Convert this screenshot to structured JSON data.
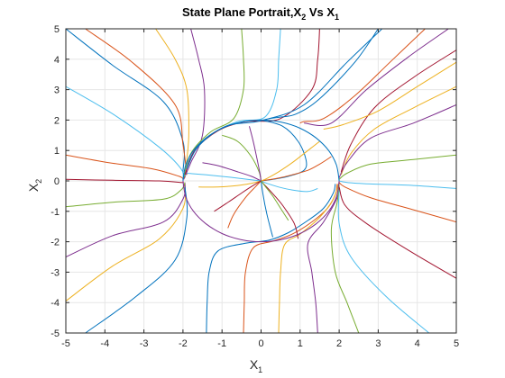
{
  "chart_data": {
    "type": "line",
    "title": {
      "part1": "State Plane Portrait,X",
      "sub1": "2",
      "part2": " Vs X",
      "sub2": "1"
    },
    "xlabel": {
      "main": "X",
      "sub": "1"
    },
    "ylabel": {
      "main": "X",
      "sub": "2"
    },
    "xlim": [
      -5,
      5
    ],
    "ylim": [
      -5,
      5
    ],
    "xticks": [
      -5,
      -4,
      -3,
      -2,
      -1,
      0,
      1,
      2,
      3,
      4,
      5
    ],
    "yticks": [
      -5,
      -4,
      -3,
      -2,
      -1,
      0,
      1,
      2,
      3,
      4,
      5
    ],
    "grid": true,
    "colors": [
      "#0072BD",
      "#D95319",
      "#EDB120",
      "#7E2F8E",
      "#77AC30",
      "#4DBEEE",
      "#A2142F"
    ],
    "series": [
      {
        "color_index": 0,
        "x": [
          -1.4,
          -1.38,
          -1.33,
          -1.1,
          -0.4,
          0.2,
          0.7,
          1.2,
          1.6,
          1.85,
          1.9
        ],
        "y": [
          -5,
          -4,
          -3,
          -2.3,
          -2.05,
          -1.95,
          -1.7,
          -1.3,
          -0.9,
          -0.4,
          -0.1
        ]
      },
      {
        "color_index": 1,
        "x": [
          -0.45,
          -0.43,
          -0.4,
          -0.2,
          0.3,
          0.8,
          1.3,
          1.7,
          1.9,
          1.95
        ],
        "y": [
          -5,
          -4,
          -3,
          -2.2,
          -1.98,
          -1.75,
          -1.35,
          -0.9,
          -0.45,
          -0.1
        ]
      },
      {
        "color_index": 2,
        "x": [
          0.45,
          0.47,
          0.5,
          0.6,
          1.0,
          1.5,
          1.85,
          1.98
        ],
        "y": [
          -5,
          -4,
          -3,
          -2.1,
          -1.75,
          -1.2,
          -0.6,
          -0.1
        ]
      },
      {
        "color_index": 3,
        "x": [
          1.45,
          1.4,
          1.3,
          1.2,
          1.6,
          1.95,
          2.0
        ],
        "y": [
          -5,
          -4,
          -3,
          -2.05,
          -1.35,
          -0.55,
          -0.05
        ]
      },
      {
        "color_index": 4,
        "x": [
          2.5,
          2.2,
          1.9,
          1.8,
          1.95,
          2.0
        ],
        "y": [
          -5,
          -4,
          -3,
          -1.6,
          -0.7,
          -0.1
        ]
      },
      {
        "color_index": 5,
        "x": [
          4.3,
          3.2,
          2.3,
          2.0,
          2.0
        ],
        "y": [
          -5,
          -3.8,
          -2.5,
          -1.4,
          -0.3
        ]
      },
      {
        "color_index": 6,
        "x": [
          5,
          3.8,
          2.7,
          2.15,
          2.0
        ],
        "y": [
          -3.2,
          -2.3,
          -1.4,
          -0.8,
          -0.2
        ]
      },
      {
        "color_index": 0,
        "x": [
          -5,
          -3.8,
          -2.5,
          -2.0,
          -2.0
        ],
        "y": [
          5,
          3.8,
          2.6,
          1.3,
          0.3
        ]
      },
      {
        "color_index": 1,
        "x": [
          -4.5,
          -3.3,
          -2.2,
          -2.0,
          -1.9
        ],
        "y": [
          5,
          3.9,
          2.5,
          1.2,
          0.2
        ]
      },
      {
        "color_index": 2,
        "x": [
          -2.7,
          -2.2,
          -1.9,
          -1.85,
          -1.9,
          -1.95
        ],
        "y": [
          5,
          4,
          3,
          1.6,
          0.7,
          0.1
        ]
      },
      {
        "color_index": 3,
        "x": [
          -1.8,
          -1.6,
          -1.45,
          -1.5,
          -1.8,
          -1.98
        ],
        "y": [
          5,
          4,
          3,
          1.5,
          0.6,
          0.05
        ]
      },
      {
        "color_index": 4,
        "x": [
          -0.5,
          -0.45,
          -0.45,
          -0.7,
          -1.3,
          -1.8,
          -1.98
        ],
        "y": [
          5,
          4,
          3,
          2.05,
          1.6,
          0.9,
          0.1
        ]
      },
      {
        "color_index": 5,
        "x": [
          0.5,
          0.45,
          0.4,
          0.1,
          -0.6,
          -1.3,
          -1.8,
          -1.95
        ],
        "y": [
          5,
          4,
          3,
          2.1,
          1.95,
          1.5,
          0.8,
          0.15
        ]
      },
      {
        "color_index": 6,
        "x": [
          1.5,
          1.45,
          1.3,
          0.5,
          -0.4,
          -1.1,
          -1.7,
          -1.95
        ],
        "y": [
          5,
          4,
          3,
          2.05,
          1.95,
          1.65,
          1.0,
          0.2
        ]
      },
      {
        "color_index": 0,
        "x": [
          3.1,
          2.2,
          1.1,
          0.0,
          -0.9,
          -1.6,
          -1.9
        ],
        "y": [
          5,
          3.9,
          2.5,
          1.98,
          1.8,
          1.15,
          0.4
        ]
      },
      {
        "color_index": 1,
        "x": [
          -5,
          -3.9,
          -2.8,
          -2.1,
          -2.0
        ],
        "y": [
          0.85,
          0.6,
          0.4,
          0.15,
          0.05
        ]
      },
      {
        "color_index": 2,
        "x": [
          -5,
          -3.8,
          -2.6,
          -2.0,
          -1.95
        ],
        "y": [
          -3.95,
          -2.8,
          -1.9,
          -0.9,
          -0.1
        ]
      },
      {
        "color_index": 3,
        "x": [
          -5,
          -3.8,
          -2.5,
          -2.0,
          -1.95
        ],
        "y": [
          -2.5,
          -1.8,
          -1.35,
          -0.6,
          -0.05
        ]
      },
      {
        "color_index": 4,
        "x": [
          -5,
          -3.8,
          -2.5,
          -2.05,
          -1.95
        ],
        "y": [
          -0.85,
          -0.7,
          -0.6,
          -0.3,
          -0.05
        ]
      },
      {
        "color_index": 5,
        "x": [
          -5,
          -3.8,
          -2.6,
          -2.05,
          -2.0
        ],
        "y": [
          3.1,
          2.2,
          1.1,
          0.4,
          0.05
        ]
      },
      {
        "color_index": 6,
        "x": [
          -5,
          -3.8,
          -2.6,
          -2.05,
          -2.0
        ],
        "y": [
          0.05,
          0.02,
          0.0,
          -0.05,
          -0.05
        ]
      },
      {
        "color_index": 0,
        "x": [
          -4.5,
          -3.2,
          -2.2,
          -1.9,
          -1.95
        ],
        "y": [
          -5,
          -3.8,
          -2.6,
          -1.2,
          -0.2
        ]
      },
      {
        "color_index": 1,
        "x": [
          5,
          3.9,
          2.8,
          2.15,
          2.0
        ],
        "y": [
          -1.35,
          -0.95,
          -0.55,
          -0.2,
          -0.05
        ]
      },
      {
        "color_index": 2,
        "x": [
          5,
          3.9,
          2.9,
          2.3,
          2.05
        ],
        "y": [
          3.1,
          2.4,
          1.7,
          0.9,
          0.2
        ]
      },
      {
        "color_index": 3,
        "x": [
          5,
          3.9,
          2.8,
          2.2,
          2.0
        ],
        "y": [
          2.5,
          1.9,
          1.4,
          0.6,
          0.1
        ]
      },
      {
        "color_index": 4,
        "x": [
          5,
          3.9,
          2.8,
          2.2,
          2.0
        ],
        "y": [
          0.85,
          0.7,
          0.55,
          0.25,
          0.05
        ]
      },
      {
        "color_index": 5,
        "x": [
          5,
          3.9,
          2.8,
          2.2,
          2.0
        ],
        "y": [
          -0.25,
          -0.15,
          -0.1,
          -0.05,
          0.0
        ]
      },
      {
        "color_index": 6,
        "x": [
          5,
          3.9,
          2.9,
          2.3,
          2.05
        ],
        "y": [
          4.3,
          3.4,
          2.4,
          1.2,
          0.3
        ]
      },
      {
        "color_index": 0,
        "x": [
          3.0,
          2.4,
          1.5,
          0.9,
          0.5,
          0.2
        ],
        "y": [
          5,
          3.9,
          2.7,
          2.2,
          2.1,
          2.05
        ]
      },
      {
        "color_index": 1,
        "x": [
          4.2,
          3.3,
          2.4,
          1.6,
          1.1,
          1.0
        ],
        "y": [
          5,
          3.9,
          2.8,
          2.05,
          1.95,
          1.9
        ]
      },
      {
        "color_index": 2,
        "x": [
          5,
          4.0,
          3.0,
          2.1,
          1.6
        ],
        "y": [
          3.9,
          3.1,
          2.3,
          1.85,
          1.7
        ]
      },
      {
        "color_index": 3,
        "x": [
          4.8,
          3.8,
          2.7,
          1.8,
          1.1
        ],
        "y": [
          5,
          4.1,
          3.0,
          1.9,
          1.9
        ]
      },
      {
        "color_index": 0,
        "x": [
          0.0,
          0.55,
          0.95,
          1.15,
          1.1,
          0.7,
          0.3,
          0.0
        ],
        "y": [
          2.0,
          1.8,
          1.3,
          0.7,
          0.35,
          0.15,
          0.05,
          0.0
        ]
      },
      {
        "color_index": 1,
        "x": [
          1.8,
          1.5,
          1.2,
          0.8,
          0.4,
          0.0
        ],
        "y": [
          0.8,
          0.55,
          0.35,
          0.2,
          0.08,
          0.0
        ]
      },
      {
        "color_index": 2,
        "x": [
          -1.6,
          -1.1,
          -0.6,
          -0.25,
          0.0
        ],
        "y": [
          -0.2,
          -0.2,
          -0.15,
          -0.08,
          0.0
        ]
      },
      {
        "color_index": 3,
        "x": [
          -1.5,
          -1.1,
          -0.6,
          -0.25,
          0.0
        ],
        "y": [
          0.6,
          0.5,
          0.3,
          0.15,
          0.0
        ]
      },
      {
        "color_index": 4,
        "x": [
          -1.0,
          -0.6,
          -0.25,
          -0.05,
          0.0
        ],
        "y": [
          1.5,
          1.3,
          0.8,
          0.3,
          0.0
        ]
      },
      {
        "color_index": 5,
        "x": [
          1.45,
          1.2,
          0.8,
          0.45,
          0.15,
          0.0
        ],
        "y": [
          -0.25,
          -0.35,
          -0.3,
          -0.2,
          -0.08,
          0.0
        ]
      },
      {
        "color_index": 6,
        "x": [
          0.95,
          0.85,
          0.55,
          0.25,
          0.05,
          0.0
        ],
        "y": [
          -1.9,
          -1.4,
          -0.8,
          -0.35,
          -0.08,
          0.0
        ]
      },
      {
        "color_index": 0,
        "x": [
          0.3,
          0.15,
          0.05,
          0.0
        ],
        "y": [
          -1.85,
          -1.1,
          -0.45,
          0.0
        ]
      },
      {
        "color_index": 1,
        "x": [
          -0.85,
          -0.7,
          -0.4,
          -0.15,
          0.0
        ],
        "y": [
          -1.55,
          -1.1,
          -0.55,
          -0.2,
          0.0
        ]
      },
      {
        "color_index": 2,
        "x": [
          1.5,
          1.2,
          0.8,
          0.45,
          0.15,
          0.0
        ],
        "y": [
          1.3,
          1.0,
          0.6,
          0.3,
          0.08,
          0.0
        ]
      },
      {
        "color_index": 3,
        "x": [
          -0.3,
          -0.2,
          -0.1,
          -0.03,
          0.0
        ],
        "y": [
          1.8,
          1.3,
          0.7,
          0.25,
          0.0
        ]
      },
      {
        "color_index": 4,
        "x": [
          0.7,
          0.5,
          0.3,
          0.12,
          0.0
        ],
        "y": [
          -1.3,
          -0.9,
          -0.5,
          -0.2,
          0.0
        ]
      },
      {
        "color_index": 5,
        "x": [
          -1.9,
          -1.4,
          -0.8,
          -0.35,
          0.0
        ],
        "y": [
          0.25,
          0.2,
          0.12,
          0.05,
          0.0
        ]
      },
      {
        "color_index": 6,
        "x": [
          -1.2,
          -0.9,
          -0.5,
          -0.2,
          0.0
        ],
        "y": [
          -1.0,
          -0.75,
          -0.4,
          -0.15,
          0.0
        ]
      },
      {
        "color_index": 0,
        "x": [
          2.0,
          1.93,
          1.73,
          1.41,
          1.0,
          0.52,
          0.0,
          -0.52,
          -1.0,
          -1.41,
          -1.73,
          -1.93,
          -2.0
        ],
        "y": [
          0.0,
          0.52,
          1.0,
          1.41,
          1.73,
          1.93,
          2.0,
          1.93,
          1.73,
          1.41,
          1.0,
          0.52,
          0.0
        ]
      },
      {
        "color_index": 3,
        "x": [
          -2.0,
          -1.93,
          -1.73,
          -1.41,
          -1.0,
          -0.52,
          0.0,
          0.52,
          1.0,
          1.41,
          1.73,
          1.93,
          2.0
        ],
        "y": [
          0.0,
          -0.52,
          -1.0,
          -1.41,
          -1.73,
          -1.93,
          -2.0,
          -1.93,
          -1.73,
          -1.41,
          -1.0,
          -0.52,
          0.0
        ]
      }
    ]
  }
}
